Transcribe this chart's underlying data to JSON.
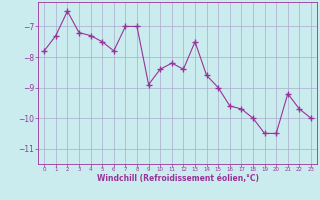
{
  "x": [
    0,
    1,
    2,
    3,
    4,
    5,
    6,
    7,
    8,
    9,
    10,
    11,
    12,
    13,
    14,
    15,
    16,
    17,
    18,
    19,
    20,
    21,
    22,
    23
  ],
  "y": [
    -7.8,
    -7.3,
    -6.5,
    -7.2,
    -7.3,
    -7.5,
    -7.8,
    -7.0,
    -7.0,
    -8.9,
    -8.4,
    -8.2,
    -8.4,
    -7.5,
    -8.6,
    -9.0,
    -9.6,
    -9.7,
    -10.0,
    -10.5,
    -10.5,
    -9.2,
    -9.7,
    -10.0
  ],
  "line_color": "#993399",
  "marker_color": "#993399",
  "bg_color": "#cbecef",
  "grid_color": "#aaaacc",
  "xlabel": "Windchill (Refroidissement éolien,°C)",
  "xlabel_color": "#993399",
  "tick_color": "#993399",
  "ylim": [
    -11.5,
    -6.2
  ],
  "yticks": [
    -11,
    -10,
    -9,
    -8,
    -7
  ],
  "xticks": [
    0,
    1,
    2,
    3,
    4,
    5,
    6,
    7,
    8,
    9,
    10,
    11,
    12,
    13,
    14,
    15,
    16,
    17,
    18,
    19,
    20,
    21,
    22,
    23
  ]
}
